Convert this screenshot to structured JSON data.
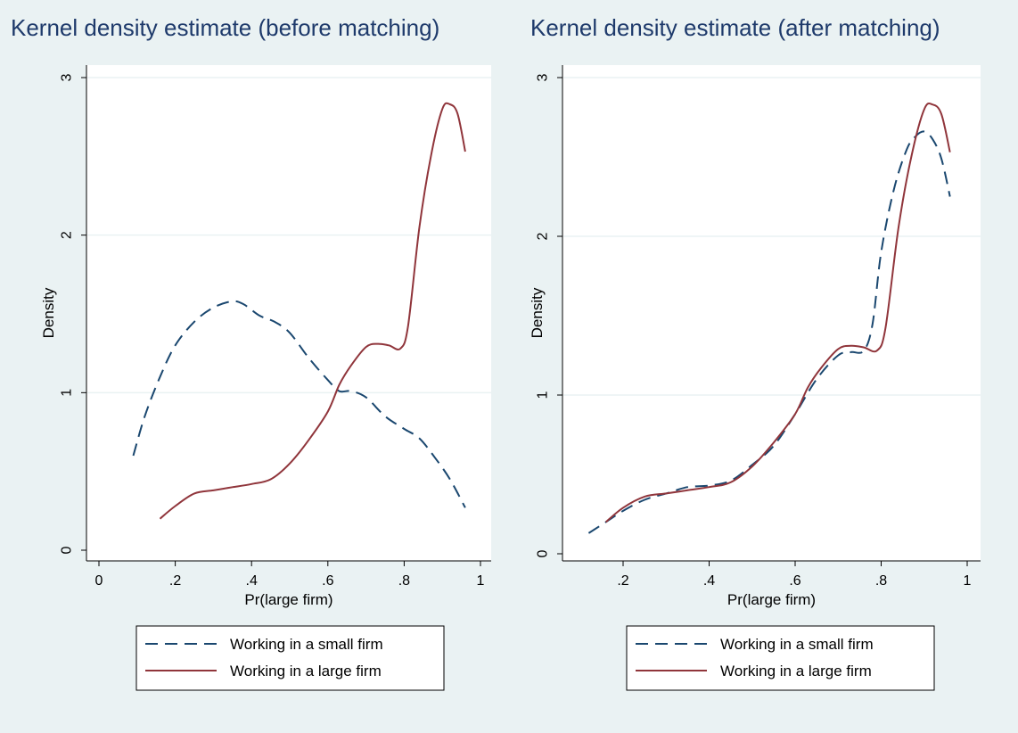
{
  "chart_data": [
    {
      "type": "line",
      "title": "Kernel density estimate (before matching)",
      "xlabel": "Pr(large firm)",
      "ylabel": "Density",
      "xlim": [
        0,
        1
      ],
      "ylim": [
        0,
        3
      ],
      "x_ticks": [
        0,
        0.2,
        0.4,
        0.6,
        0.8,
        1
      ],
      "x_tick_labels": [
        "0",
        ".2",
        ".4",
        ".6",
        ".8",
        "1"
      ],
      "y_ticks": [
        0,
        1,
        2,
        3
      ],
      "y_tick_labels": [
        "0",
        "1",
        "2",
        "3"
      ],
      "grid": "horizontal",
      "legend_position": "bottom",
      "series": [
        {
          "name": "Working in a small firm",
          "style": "dashed",
          "color": "#1a476f",
          "points": [
            [
              0.09,
              0.6
            ],
            [
              0.12,
              0.85
            ],
            [
              0.16,
              1.1
            ],
            [
              0.2,
              1.3
            ],
            [
              0.25,
              1.45
            ],
            [
              0.3,
              1.54
            ],
            [
              0.35,
              1.58
            ],
            [
              0.38,
              1.56
            ],
            [
              0.42,
              1.49
            ],
            [
              0.46,
              1.45
            ],
            [
              0.5,
              1.38
            ],
            [
              0.55,
              1.22
            ],
            [
              0.6,
              1.08
            ],
            [
              0.63,
              1.01
            ],
            [
              0.66,
              1.01
            ],
            [
              0.7,
              0.97
            ],
            [
              0.75,
              0.85
            ],
            [
              0.8,
              0.77
            ],
            [
              0.84,
              0.71
            ],
            [
              0.88,
              0.59
            ],
            [
              0.92,
              0.45
            ],
            [
              0.96,
              0.27
            ]
          ]
        },
        {
          "name": "Working in a large firm",
          "style": "solid",
          "color": "#90353b",
          "points": [
            [
              0.16,
              0.2
            ],
            [
              0.2,
              0.28
            ],
            [
              0.25,
              0.36
            ],
            [
              0.3,
              0.38
            ],
            [
              0.35,
              0.4
            ],
            [
              0.4,
              0.42
            ],
            [
              0.45,
              0.45
            ],
            [
              0.5,
              0.55
            ],
            [
              0.55,
              0.7
            ],
            [
              0.6,
              0.88
            ],
            [
              0.63,
              1.05
            ],
            [
              0.66,
              1.17
            ],
            [
              0.7,
              1.29
            ],
            [
              0.73,
              1.31
            ],
            [
              0.76,
              1.3
            ],
            [
              0.79,
              1.28
            ],
            [
              0.81,
              1.42
            ],
            [
              0.84,
              2.05
            ],
            [
              0.87,
              2.5
            ],
            [
              0.9,
              2.8
            ],
            [
              0.92,
              2.83
            ],
            [
              0.94,
              2.77
            ],
            [
              0.96,
              2.53
            ]
          ]
        }
      ]
    },
    {
      "type": "line",
      "title": "Kernel density estimate (after matching)",
      "xlabel": "Pr(large firm)",
      "ylabel": "Density",
      "xlim": [
        0.1,
        1
      ],
      "ylim": [
        0,
        3
      ],
      "x_ticks": [
        0.2,
        0.4,
        0.6,
        0.8,
        1
      ],
      "x_tick_labels": [
        ".2",
        ".4",
        ".6",
        ".8",
        "1"
      ],
      "y_ticks": [
        0,
        1,
        2,
        3
      ],
      "y_tick_labels": [
        "0",
        "1",
        "2",
        "3"
      ],
      "grid": "horizontal",
      "legend_position": "bottom",
      "series": [
        {
          "name": "Working in a small firm",
          "style": "dashed",
          "color": "#1a476f",
          "points": [
            [
              0.12,
              0.13
            ],
            [
              0.16,
              0.2
            ],
            [
              0.2,
              0.27
            ],
            [
              0.25,
              0.34
            ],
            [
              0.3,
              0.38
            ],
            [
              0.35,
              0.42
            ],
            [
              0.4,
              0.43
            ],
            [
              0.45,
              0.46
            ],
            [
              0.5,
              0.56
            ],
            [
              0.55,
              0.68
            ],
            [
              0.6,
              0.88
            ],
            [
              0.65,
              1.1
            ],
            [
              0.7,
              1.25
            ],
            [
              0.73,
              1.27
            ],
            [
              0.76,
              1.28
            ],
            [
              0.78,
              1.45
            ],
            [
              0.8,
              1.9
            ],
            [
              0.83,
              2.3
            ],
            [
              0.86,
              2.55
            ],
            [
              0.88,
              2.63
            ],
            [
              0.9,
              2.66
            ],
            [
              0.92,
              2.61
            ],
            [
              0.94,
              2.49
            ],
            [
              0.96,
              2.25
            ]
          ]
        },
        {
          "name": "Working in a large firm",
          "style": "solid",
          "color": "#90353b",
          "points": [
            [
              0.16,
              0.2
            ],
            [
              0.2,
              0.29
            ],
            [
              0.25,
              0.36
            ],
            [
              0.3,
              0.38
            ],
            [
              0.35,
              0.4
            ],
            [
              0.4,
              0.42
            ],
            [
              0.45,
              0.45
            ],
            [
              0.5,
              0.55
            ],
            [
              0.55,
              0.7
            ],
            [
              0.6,
              0.88
            ],
            [
              0.63,
              1.05
            ],
            [
              0.66,
              1.17
            ],
            [
              0.7,
              1.29
            ],
            [
              0.73,
              1.31
            ],
            [
              0.76,
              1.3
            ],
            [
              0.79,
              1.28
            ],
            [
              0.81,
              1.42
            ],
            [
              0.84,
              2.05
            ],
            [
              0.87,
              2.5
            ],
            [
              0.9,
              2.8
            ],
            [
              0.92,
              2.83
            ],
            [
              0.94,
              2.77
            ],
            [
              0.96,
              2.53
            ]
          ]
        }
      ]
    }
  ],
  "colors": {
    "background": "#eaf2f3",
    "plot_area": "#ffffff",
    "grid": "#eaf2f3",
    "title": "#1e3a6b",
    "axis": "#000000"
  }
}
